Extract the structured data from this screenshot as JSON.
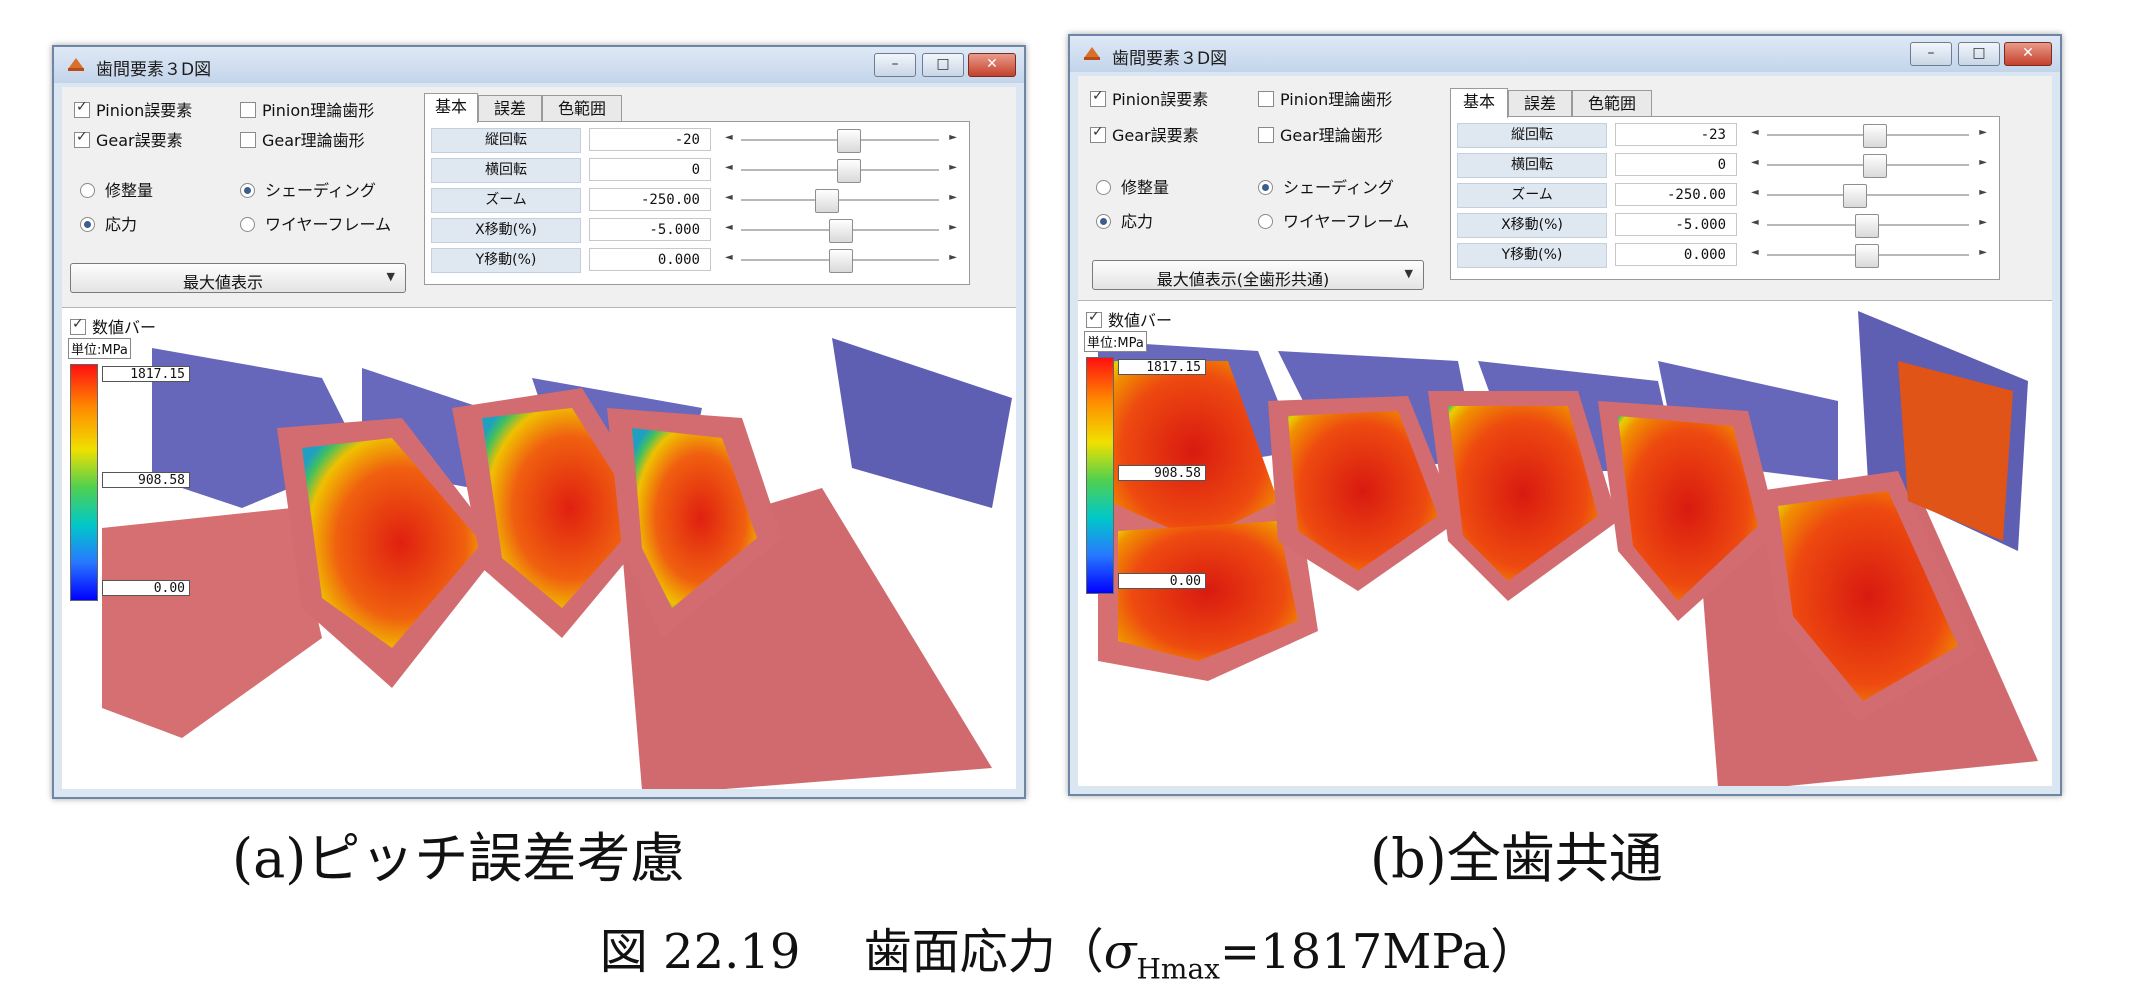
{
  "colors": {
    "pink": "#d06a6e",
    "blue": "#6060b8",
    "red": "#ff2020",
    "window_frame": "#dbe6f3"
  },
  "windows": [
    {
      "id": "a",
      "title": "歯間要素３D図",
      "checks": [
        {
          "label": "Pinion誤要素",
          "checked": true
        },
        {
          "label": "Pinion理論歯形",
          "checked": false
        },
        {
          "label": "Gear誤要素",
          "checked": true
        },
        {
          "label": "Gear理論歯形",
          "checked": false
        }
      ],
      "radios": [
        {
          "label": "修整量",
          "checked": false
        },
        {
          "label": "シェーディング",
          "checked": true
        },
        {
          "label": "応力",
          "checked": true
        },
        {
          "label": "ワイヤーフレーム",
          "checked": false
        }
      ],
      "select": "最大値表示",
      "tabs": [
        "基本",
        "誤差",
        "色範囲"
      ],
      "params": [
        {
          "label": "縦回転",
          "value": "-20",
          "slider": 0.52
        },
        {
          "label": "横回転",
          "value": "0",
          "slider": 0.52
        },
        {
          "label": "ズーム",
          "value": "-250.00",
          "slider": 0.46
        },
        {
          "label": "X移動(%)",
          "value": "-5.000",
          "slider": 0.5
        },
        {
          "label": "Y移動(%)",
          "value": "0.000",
          "slider": 0.5
        }
      ],
      "viewport": {
        "value_bar_label": "数値バー",
        "unit_label": "単位:MPa",
        "scale_max": "1817.15",
        "scale_mid": "908.58",
        "scale_min": "0.00"
      }
    },
    {
      "id": "b",
      "title": "歯間要素３D図",
      "checks": [
        {
          "label": "Pinion誤要素",
          "checked": true
        },
        {
          "label": "Pinion理論歯形",
          "checked": false
        },
        {
          "label": "Gear誤要素",
          "checked": true
        },
        {
          "label": "Gear理論歯形",
          "checked": false
        }
      ],
      "radios": [
        {
          "label": "修整量",
          "checked": false
        },
        {
          "label": "シェーディング",
          "checked": true
        },
        {
          "label": "応力",
          "checked": true
        },
        {
          "label": "ワイヤーフレーム",
          "checked": false
        }
      ],
      "select": "最大値表示(全歯形共通)",
      "tabs": [
        "基本",
        "誤差",
        "色範囲"
      ],
      "params": [
        {
          "label": "縦回転",
          "value": "-23",
          "slider": 0.52
        },
        {
          "label": "横回転",
          "value": "0",
          "slider": 0.52
        },
        {
          "label": "ズーム",
          "value": "-250.00",
          "slider": 0.46
        },
        {
          "label": "X移動(%)",
          "value": "-5.000",
          "slider": 0.5
        },
        {
          "label": "Y移動(%)",
          "value": "0.000",
          "slider": 0.5
        }
      ],
      "viewport": {
        "value_bar_label": "数値バー",
        "unit_label": "単位:MPa",
        "scale_max": "1817.15",
        "scale_mid": "908.58",
        "scale_min": "0.00"
      }
    }
  ],
  "captions": {
    "a": "(a)ピッチ誤差考慮",
    "b": "(b)全歯共通"
  },
  "figure_title": {
    "prefix": "図 22.19　 歯面応力（",
    "sigma": "σ",
    "sub": "Hmax",
    "suffix": "=1817MPa）"
  }
}
